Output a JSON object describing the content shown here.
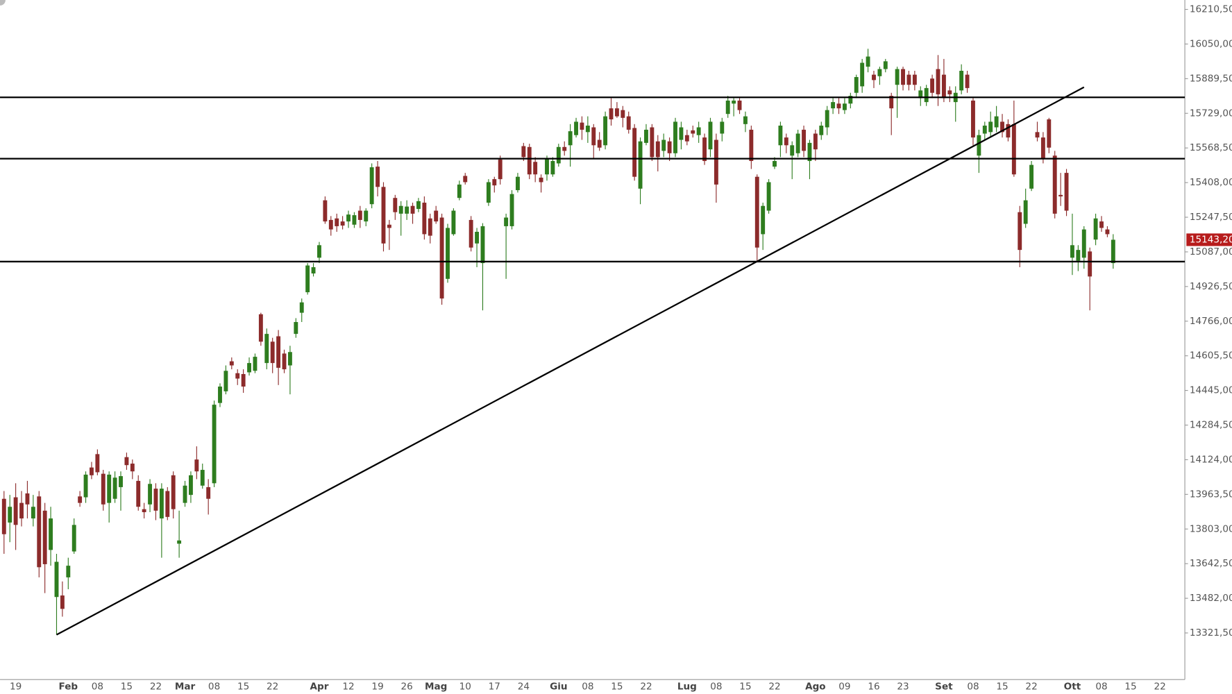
{
  "chart_data": {
    "type": "candlestick",
    "categories": [
      null,
      null,
      "19",
      null,
      null,
      null,
      null,
      null,
      null,
      null,
      null,
      "Feb",
      null,
      null,
      null,
      null,
      "08",
      null,
      null,
      null,
      null,
      "15",
      null,
      null,
      null,
      null,
      "22",
      null,
      null,
      null,
      null,
      "Mar",
      null,
      null,
      null,
      null,
      "08",
      null,
      null,
      null,
      null,
      "15",
      null,
      null,
      null,
      null,
      "22",
      null,
      null,
      null,
      null,
      null,
      null,
      null,
      "Apr",
      null,
      null,
      null,
      null,
      "12",
      null,
      null,
      null,
      null,
      "19",
      null,
      null,
      null,
      null,
      "26",
      null,
      null,
      null,
      null,
      "Mag",
      null,
      null,
      null,
      null,
      "10",
      null,
      null,
      null,
      null,
      "17",
      null,
      null,
      null,
      null,
      "24",
      null,
      null,
      null,
      null,
      null,
      "Giu",
      null,
      null,
      null,
      null,
      "08",
      null,
      null,
      null,
      null,
      "15",
      null,
      null,
      null,
      null,
      "22",
      null,
      null,
      null,
      null,
      null,
      null,
      "Lug",
      null,
      null,
      null,
      null,
      "08",
      null,
      null,
      null,
      null,
      "15",
      null,
      null,
      null,
      null,
      "22",
      null,
      null,
      null,
      null,
      null,
      null,
      "Ago",
      null,
      null,
      null,
      null,
      "09",
      null,
      null,
      null,
      null,
      "16",
      null,
      null,
      null,
      null,
      "23",
      null,
      null,
      null,
      null,
      null,
      null,
      "Set",
      null,
      null,
      null,
      null,
      "08",
      null,
      null,
      null,
      null,
      "15",
      null,
      null,
      null,
      null,
      "22",
      null,
      null,
      null,
      null,
      null,
      null,
      "Ott",
      null,
      null,
      null,
      null,
      "08",
      null,
      null,
      null,
      null,
      "15",
      null,
      null,
      null,
      null,
      "22"
    ],
    "open": [
      13943,
      13833,
      13950,
      13924,
      13968,
      13852,
      13954,
      13888,
      13706,
      13488,
      13495,
      13579,
      13699,
      13954,
      13950,
      14088,
      14150,
      14059,
      13924,
      13943,
      13997,
      14136,
      14106,
      14026,
      13895,
      13917,
      13990,
      13852,
      13979,
      14052,
      13735,
      13924,
      13961,
      14125,
      14004,
      13997,
      14015,
      14387,
      14441,
      14580,
      14525,
      14521,
      14529,
      14536,
      14798,
      14572,
      14671,
      14696,
      14616,
      14561,
      14707,
      14805,
      14900,
      14987,
      15060,
      15326,
      15235,
      15242,
      15228,
      15228,
      15213,
      15278,
      15228,
      15308,
      15482,
      15388,
      15213,
      15337,
      15264,
      15264,
      15300,
      15286,
      15315,
      15242,
      15278,
      15246,
      14962,
      15169,
      15337,
      15439,
      15235,
      15126,
      15035,
      15315,
      15424,
      15515,
      15206,
      15206,
      15373,
      15577,
      15573,
      15504,
      15431,
      15446,
      15446,
      15497,
      15573,
      15581,
      15628,
      15686,
      15642,
      15664,
      15606,
      15581,
      15752,
      15752,
      15744,
      15715,
      15661,
      15380,
      15592,
      15664,
      15599,
      15555,
      15599,
      15544,
      15606,
      15628,
      15650,
      15628,
      15617,
      15562,
      15606,
      15635,
      15726,
      15774,
      15788,
      15679,
      15653,
      15435,
      15169,
      15278,
      15482,
      15581,
      15617,
      15533,
      15544,
      15653,
      15508,
      15635,
      15628,
      15664,
      15752,
      15774,
      15744,
      15774,
      15824,
      15854,
      15945,
      15908,
      15901,
      15934,
      15810,
      15861,
      15934,
      15908,
      15908,
      15799,
      15781,
      15890,
      15934,
      15908,
      15835,
      15781,
      15835,
      15908,
      15788,
      15533,
      15635,
      15642,
      15664,
      15690,
      15679,
      15679,
      15271,
      15217,
      15380,
      15642,
      15617,
      15701,
      15533,
      15351,
      15453,
      15060,
      15046,
      15060,
      15089,
      15144,
      15228,
      15191,
      15035,
      null,
      null,
      null,
      null,
      null,
      null,
      null,
      null
    ],
    "high": [
      13979,
      13961,
      14015,
      13979,
      14026,
      13961,
      13979,
      13924,
      13906,
      13688,
      13560,
      13670,
      13852,
      13979,
      14070,
      14114,
      14172,
      14077,
      14070,
      14070,
      14070,
      14157,
      14125,
      14052,
      13924,
      14034,
      14015,
      14015,
      13997,
      14070,
      13888,
      14026,
      14070,
      14186,
      14106,
      14034,
      14398,
      14478,
      14561,
      14598,
      14543,
      14543,
      14598,
      14616,
      14805,
      14732,
      14689,
      14725,
      14634,
      14652,
      14780,
      14871,
      15035,
      15035,
      15133,
      15344,
      15253,
      15264,
      15253,
      15278,
      15271,
      15300,
      15289,
      15497,
      15508,
      15410,
      15235,
      15351,
      15322,
      15326,
      15315,
      15337,
      15344,
      15264,
      15300,
      15264,
      15217,
      15289,
      15417,
      15453,
      15253,
      15198,
      15220,
      15424,
      15435,
      15533,
      15264,
      15373,
      15453,
      15592,
      15588,
      15526,
      15446,
      15533,
      15526,
      15588,
      15599,
      15679,
      15708,
      15715,
      15715,
      15679,
      15642,
      15737,
      15799,
      15781,
      15763,
      15737,
      15679,
      15617,
      15679,
      15679,
      15628,
      15635,
      15617,
      15708,
      15690,
      15653,
      15672,
      15690,
      15635,
      15708,
      15635,
      15708,
      15810,
      15799,
      15799,
      15737,
      15672,
      15446,
      15315,
      15424,
      15526,
      15690,
      15635,
      15599,
      15653,
      15672,
      15606,
      15653,
      15690,
      15763,
      15799,
      15799,
      15799,
      15824,
      15908,
      15981,
      16028,
      15926,
      15945,
      15981,
      15824,
      15945,
      15945,
      15926,
      15926,
      15854,
      15861,
      15908,
      15999,
      15981,
      15854,
      15854,
      15956,
      15926,
      15799,
      15653,
      15690,
      15737,
      15763,
      15726,
      15701,
      15788,
      15300,
      15380,
      15508,
      15690,
      15642,
      15708,
      15555,
      15453,
      15471,
      15264,
      15118,
      15206,
      15107,
      15264,
      15253,
      15206,
      15169,
      null,
      null,
      null,
      null,
      null,
      null,
      null,
      null
    ],
    "low": [
      13688,
      13742,
      13706,
      13815,
      13852,
      13815,
      13579,
      13506,
      13633,
      13313,
      13397,
      13524,
      13688,
      13906,
      13924,
      14034,
      14052,
      13888,
      13833,
      13924,
      13888,
      14077,
      14034,
      13888,
      13852,
      13881,
      13844,
      13670,
      13844,
      13852,
      13670,
      13906,
      13924,
      14034,
      13990,
      13870,
      13997,
      14368,
      14427,
      14543,
      14470,
      14434,
      14514,
      14525,
      14652,
      14543,
      14525,
      14470,
      14525,
      14427,
      14689,
      14762,
      14889,
      14973,
      15035,
      15217,
      15162,
      15180,
      15191,
      15198,
      15198,
      15198,
      15206,
      15289,
      15344,
      15089,
      15096,
      15235,
      15162,
      15235,
      15217,
      15271,
      15144,
      15126,
      15217,
      14842,
      14944,
      15162,
      15326,
      15399,
      15089,
      15016,
      14816,
      15300,
      15362,
      15399,
      14962,
      15191,
      15362,
      15508,
      15424,
      15410,
      15362,
      15417,
      15435,
      15482,
      15533,
      15482,
      15617,
      15606,
      15592,
      15519,
      15555,
      15562,
      15672,
      15708,
      15664,
      15635,
      15417,
      15308,
      15581,
      15508,
      15460,
      15526,
      15508,
      15526,
      15562,
      15581,
      15617,
      15592,
      15490,
      15526,
      15315,
      15599,
      15708,
      15715,
      15726,
      15642,
      15471,
      15046,
      15096,
      15264,
      15471,
      15526,
      15544,
      15424,
      15526,
      15526,
      15424,
      15508,
      15606,
      15628,
      15726,
      15726,
      15726,
      15752,
      15799,
      15824,
      15919,
      15846,
      15861,
      15919,
      15628,
      15708,
      15835,
      15835,
      15835,
      15763,
      15763,
      15799,
      15763,
      15781,
      15781,
      15690,
      15817,
      15824,
      15581,
      15453,
      15606,
      15617,
      15642,
      15617,
      15599,
      15435,
      15016,
      15198,
      15369,
      15599,
      15497,
      15544,
      15242,
      15300,
      15253,
      14980,
      14998,
      15009,
      14816,
      15118,
      15180,
      15155,
      15009,
      null,
      null,
      null,
      null,
      null,
      null,
      null,
      null
    ],
    "close": [
      13779,
      13906,
      13822,
      13852,
      13917,
      13906,
      13626,
      13640,
      13852,
      13651,
      13433,
      13633,
      13822,
      13924,
      14055,
      14052,
      14066,
      13917,
      14055,
      14041,
      14048,
      14099,
      14070,
      13906,
      13881,
      14012,
      13888,
      13990,
      13859,
      13895,
      13750,
      14004,
      14052,
      14070,
      14077,
      13943,
      14379,
      14463,
      14536,
      14561,
      14500,
      14463,
      14572,
      14601,
      14671,
      14707,
      14572,
      14550,
      14543,
      14623,
      14762,
      14853,
      15024,
      15016,
      15118,
      15228,
      15191,
      15206,
      15209,
      15260,
      15257,
      15235,
      15278,
      15479,
      15388,
      15126,
      15198,
      15271,
      15300,
      15297,
      15264,
      15322,
      15169,
      15162,
      15228,
      14871,
      15198,
      15278,
      15399,
      15410,
      15107,
      15180,
      15206,
      15410,
      15395,
      15424,
      15246,
      15355,
      15435,
      15526,
      15446,
      15446,
      15410,
      15519,
      15508,
      15573,
      15555,
      15646,
      15690,
      15653,
      15672,
      15581,
      15570,
      15715,
      15701,
      15715,
      15708,
      15653,
      15435,
      15599,
      15653,
      15526,
      15526,
      15606,
      15544,
      15690,
      15664,
      15599,
      15635,
      15664,
      15508,
      15690,
      15399,
      15690,
      15788,
      15788,
      15744,
      15715,
      15508,
      15107,
      15300,
      15410,
      15508,
      15672,
      15581,
      15581,
      15635,
      15555,
      15592,
      15562,
      15672,
      15744,
      15781,
      15752,
      15774,
      15810,
      15897,
      15963,
      15992,
      15883,
      15934,
      15970,
      15752,
      15934,
      15861,
      15861,
      15861,
      15835,
      15846,
      15824,
      15817,
      15799,
      15817,
      15824,
      15926,
      15846,
      15617,
      15628,
      15672,
      15690,
      15715,
      15642,
      15617,
      15446,
      15096,
      15326,
      15490,
      15617,
      15519,
      15570,
      15264,
      15344,
      15278,
      15118,
      15096,
      15191,
      14973,
      15242,
      15198,
      15169,
      15143.2,
      null,
      null,
      null,
      null,
      null,
      null,
      null,
      null
    ],
    "up_color": "#2e7d1f",
    "down_color": "#8c2b2b",
    "ylim": [
      13107,
      16254
    ],
    "yticks": [
      {
        "value": 16210.5,
        "label": "16210,50"
      },
      {
        "value": 16050,
        "label": "16050,00"
      },
      {
        "value": 15889.5,
        "label": "15889,50"
      },
      {
        "value": 15729,
        "label": "15729,00"
      },
      {
        "value": 15568.5,
        "label": "15568,50"
      },
      {
        "value": 15408,
        "label": "15408,00"
      },
      {
        "value": 15247.5,
        "label": "15247,50"
      },
      {
        "value": 15087,
        "label": "15087,00"
      },
      {
        "value": 14926.5,
        "label": "14926,50"
      },
      {
        "value": 14766,
        "label": "14766,00"
      },
      {
        "value": 14605.5,
        "label": "14605,50"
      },
      {
        "value": 14445,
        "label": "14445,00"
      },
      {
        "value": 14284.5,
        "label": "14284,50"
      },
      {
        "value": 14124,
        "label": "14124,00"
      },
      {
        "value": 13963.5,
        "label": "13963,50"
      },
      {
        "value": 13803,
        "label": "13803,00"
      },
      {
        "value": 13642.5,
        "label": "13642,50"
      },
      {
        "value": 13482,
        "label": "13482,00"
      },
      {
        "value": 13321.5,
        "label": "13321,50"
      }
    ],
    "levels": [
      15803,
      15519,
      15042
    ],
    "trendline": {
      "from": [
        9,
        13313
      ],
      "to": [
        185,
        15850
      ]
    },
    "line_color": "#000000",
    "last_price": {
      "value": 15143.2,
      "label": "15143,20"
    },
    "last_price_color": "#b71c1c"
  }
}
